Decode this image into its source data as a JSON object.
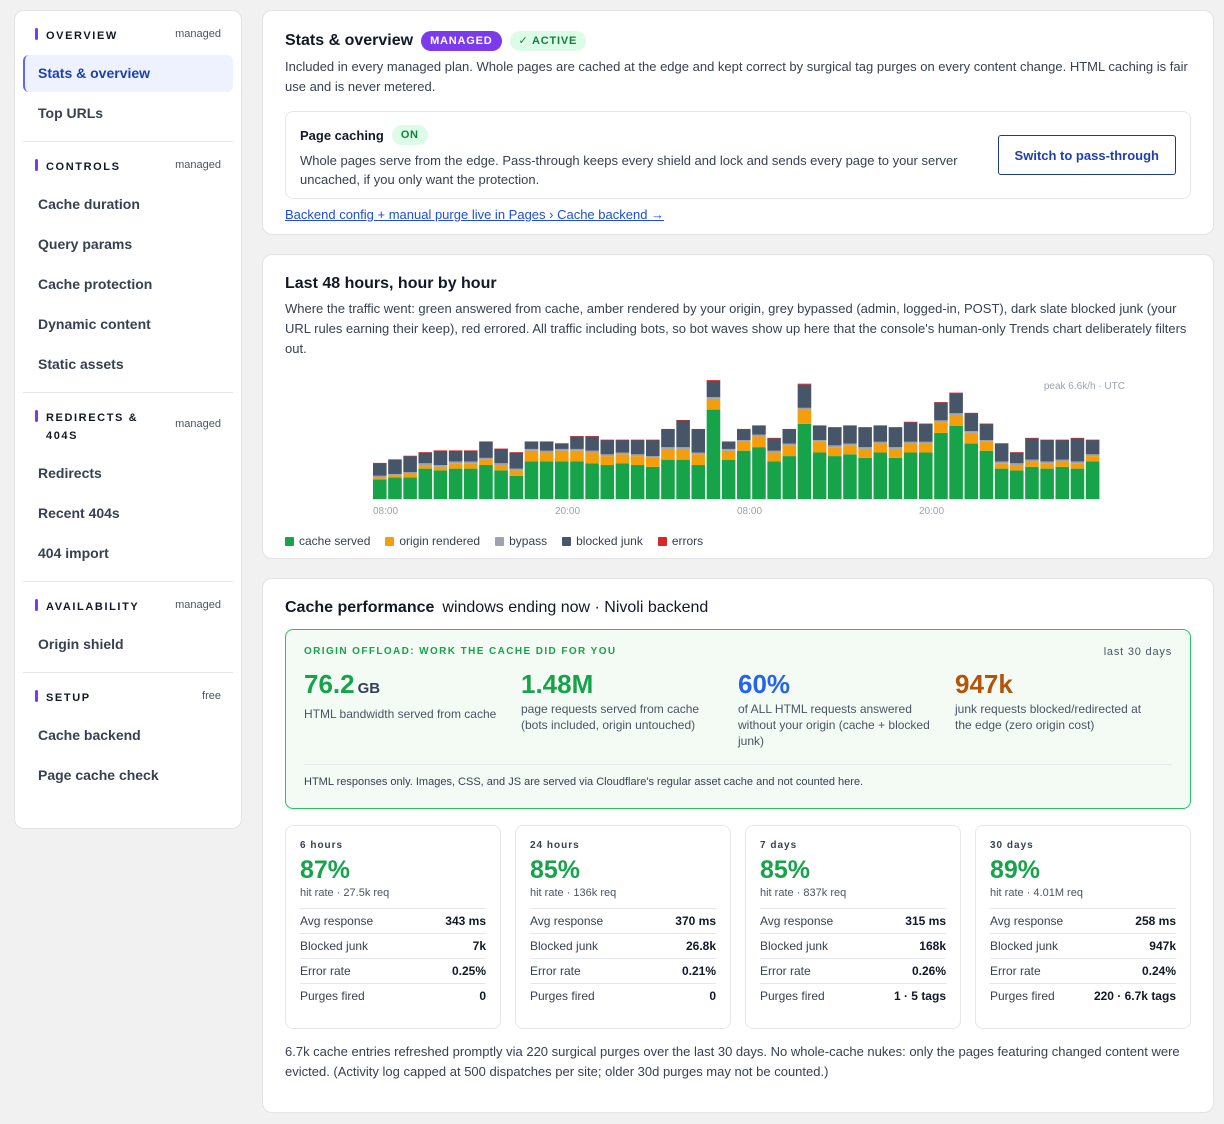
{
  "sidebar": {
    "groups": [
      {
        "title": "OVERVIEW",
        "tag": "managed",
        "items": [
          "Stats & overview",
          "Top URLs"
        ],
        "active": 0
      },
      {
        "title": "CONTROLS",
        "tag": "managed",
        "items": [
          "Cache duration",
          "Query params",
          "Cache protection",
          "Dynamic content",
          "Static assets"
        ]
      },
      {
        "title_lines": [
          "REDIRECTS &",
          "404S"
        ],
        "tag": "managed",
        "items": [
          "Redirects",
          "Recent 404s",
          "404 import"
        ]
      },
      {
        "title": "AVAILABILITY",
        "tag": "managed",
        "items": [
          "Origin shield"
        ]
      },
      {
        "title": "SETUP",
        "tag": "free",
        "items": [
          "Cache backend",
          "Page cache check"
        ]
      }
    ]
  },
  "overview": {
    "title": "Stats & overview",
    "badge_managed": "MANAGED",
    "badge_active": "✓ ACTIVE",
    "description": "Included in every managed plan. Whole pages are cached at the edge and kept correct by surgical tag purges on every content change. HTML caching is fair use and is never metered.",
    "page_caching": {
      "label": "Page caching",
      "status": "ON",
      "description": "Whole pages serve from the edge. Pass-through keeps every shield and lock and sends every page to your server uncached, if you only want the protection.",
      "button": "Switch to pass-through"
    },
    "link": "Backend config + manual purge live in Pages › Cache backend →"
  },
  "traffic": {
    "title": "Last 48 hours, hour by hour",
    "description": "Where the traffic went: green answered from cache, amber rendered by your origin, grey bypassed (admin, logged-in, POST), dark slate blocked junk (your URL rules earning their keep), red errored. All traffic including bots, so bot waves show up here that the console's human-only Trends chart deliberately filters out.",
    "peak_label": "peak 6.6k/h · UTC",
    "legend": [
      {
        "label": "cache served",
        "color": "#16a34a"
      },
      {
        "label": "origin rendered",
        "color": "#f59e0b"
      },
      {
        "label": "bypass",
        "color": "#9ca3af"
      },
      {
        "label": "blocked junk",
        "color": "#475569"
      },
      {
        "label": "errors",
        "color": "#dc2626"
      }
    ]
  },
  "chart_data": {
    "type": "bar",
    "stacked": true,
    "x_tick_labels": [
      "08:00",
      "20:00",
      "08:00",
      "20:00"
    ],
    "peak": "6.6k/h",
    "series": [
      {
        "name": "cache served",
        "color": "#16a34a",
        "values": [
          1.1,
          1.2,
          1.2,
          1.7,
          1.6,
          1.7,
          1.7,
          1.9,
          1.6,
          1.3,
          2.1,
          2.1,
          2.1,
          2.1,
          2.0,
          1.9,
          2.0,
          1.9,
          1.8,
          2.2,
          2.2,
          1.9,
          5.0,
          2.2,
          2.7,
          2.9,
          2.1,
          2.4,
          4.2,
          2.6,
          2.4,
          2.5,
          2.3,
          2.6,
          2.3,
          2.6,
          2.6,
          3.7,
          4.1,
          3.1,
          2.7,
          1.7,
          1.6,
          1.8,
          1.7,
          1.8,
          1.7,
          2.1
        ]
      },
      {
        "name": "origin rendered",
        "color": "#f59e0b",
        "values": [
          0.1,
          0.1,
          0.2,
          0.2,
          0.2,
          0.3,
          0.3,
          0.3,
          0.3,
          0.3,
          0.6,
          0.5,
          0.6,
          0.6,
          0.6,
          0.5,
          0.5,
          0.5,
          0.5,
          0.6,
          0.6,
          0.6,
          0.6,
          0.5,
          0.5,
          0.6,
          0.5,
          0.6,
          0.8,
          0.6,
          0.5,
          0.5,
          0.5,
          0.5,
          0.5,
          0.5,
          0.5,
          0.6,
          0.6,
          0.6,
          0.5,
          0.3,
          0.3,
          0.3,
          0.3,
          0.3,
          0.3,
          0.3
        ]
      },
      {
        "name": "bypass",
        "color": "#9ca3af",
        "values": [
          0.1,
          0.1,
          0.1,
          0.1,
          0.1,
          0.1,
          0.1,
          0.1,
          0.1,
          0.1,
          0.1,
          0.1,
          0.1,
          0.1,
          0.1,
          0.1,
          0.1,
          0.1,
          0.1,
          0.1,
          0.1,
          0.1,
          0.1,
          0.1,
          0.1,
          0.1,
          0.1,
          0.1,
          0.1,
          0.1,
          0.1,
          0.1,
          0.1,
          0.1,
          0.1,
          0.1,
          0.1,
          0.1,
          0.1,
          0.1,
          0.1,
          0.1,
          0.1,
          0.1,
          0.1,
          0.1,
          0.1,
          0.1
        ]
      },
      {
        "name": "blocked junk",
        "color": "#475569",
        "values": [
          0.7,
          0.8,
          0.9,
          0.6,
          0.8,
          0.6,
          0.6,
          0.9,
          0.8,
          0.9,
          0.4,
          0.5,
          0.3,
          0.7,
          0.8,
          0.8,
          0.7,
          0.8,
          0.9,
          1.0,
          1.5,
          1.3,
          0.9,
          0.4,
          0.6,
          0.5,
          0.7,
          0.8,
          1.3,
          0.8,
          1.0,
          1.0,
          1.1,
          0.9,
          1.1,
          1.1,
          1.0,
          1.0,
          1.1,
          1.0,
          0.9,
          1.0,
          0.6,
          1.2,
          1.2,
          1.1,
          1.3,
          0.8
        ]
      },
      {
        "name": "errors",
        "color": "#dc2626",
        "values": [
          0.02,
          0.02,
          0.02,
          0.02,
          0.02,
          0.02,
          0.02,
          0.02,
          0.02,
          0.02,
          0.02,
          0.02,
          0.02,
          0.02,
          0.02,
          0.02,
          0.02,
          0.02,
          0.02,
          0.02,
          0.02,
          0.02,
          0.05,
          0.02,
          0.02,
          0.02,
          0.02,
          0.02,
          0.05,
          0.02,
          0.02,
          0.02,
          0.02,
          0.02,
          0.02,
          0.02,
          0.02,
          0.02,
          0.05,
          0.02,
          0.02,
          0.02,
          0.02,
          0.02,
          0.02,
          0.02,
          0.02,
          0.02
        ]
      }
    ]
  },
  "performance": {
    "title": "Cache performance",
    "subtitle": "windows ending now · Nivoli backend",
    "offload": {
      "title": "ORIGIN OFFLOAD: WORK THE CACHE DID FOR YOU",
      "period": "last 30 days",
      "metrics": [
        {
          "value": "76.2",
          "unit": "GB",
          "color": "#16a34a",
          "desc": "HTML bandwidth served from cache"
        },
        {
          "value": "1.48M",
          "unit": "",
          "color": "#16a34a",
          "desc": "page requests served from cache (bots included, origin untouched)"
        },
        {
          "value": "60%",
          "unit": "",
          "color": "#2563eb",
          "desc": "of ALL HTML requests answered without your origin (cache + blocked junk)"
        },
        {
          "value": "947k",
          "unit": "",
          "color": "#b45309",
          "desc": "junk requests blocked/redirected at the edge (zero origin cost)"
        }
      ],
      "note": "HTML responses only. Images, CSS, and JS are served via Cloudflare's regular asset cache and not counted here."
    },
    "windows": [
      {
        "label": "6 hours",
        "rate": "87%",
        "sub": "hit rate · 27.5k req",
        "rows": [
          [
            "Avg response",
            "343 ms"
          ],
          [
            "Blocked junk",
            "7k"
          ],
          [
            "Error rate",
            "0.25%"
          ],
          [
            "Purges fired",
            "0"
          ]
        ]
      },
      {
        "label": "24 hours",
        "rate": "85%",
        "sub": "hit rate · 136k req",
        "rows": [
          [
            "Avg response",
            "370 ms"
          ],
          [
            "Blocked junk",
            "26.8k"
          ],
          [
            "Error rate",
            "0.21%"
          ],
          [
            "Purges fired",
            "0"
          ]
        ]
      },
      {
        "label": "7 days",
        "rate": "85%",
        "sub": "hit rate · 837k req",
        "rows": [
          [
            "Avg response",
            "315 ms"
          ],
          [
            "Blocked junk",
            "168k"
          ],
          [
            "Error rate",
            "0.26%"
          ],
          [
            "Purges fired",
            "1 · 5 tags"
          ]
        ]
      },
      {
        "label": "30 days",
        "rate": "89%",
        "sub": "hit rate · 4.01M req",
        "rows": [
          [
            "Avg response",
            "258 ms"
          ],
          [
            "Blocked junk",
            "947k"
          ],
          [
            "Error rate",
            "0.24%"
          ],
          [
            "Purges fired",
            "220 · 6.7k tags"
          ]
        ]
      }
    ],
    "footnote": "6.7k cache entries refreshed promptly via 220 surgical purges over the last 30 days. No whole-cache nukes: only the pages featuring changed content were evicted. (Activity log capped at 500 dispatches per site; older 30d purges may not be counted.)"
  }
}
